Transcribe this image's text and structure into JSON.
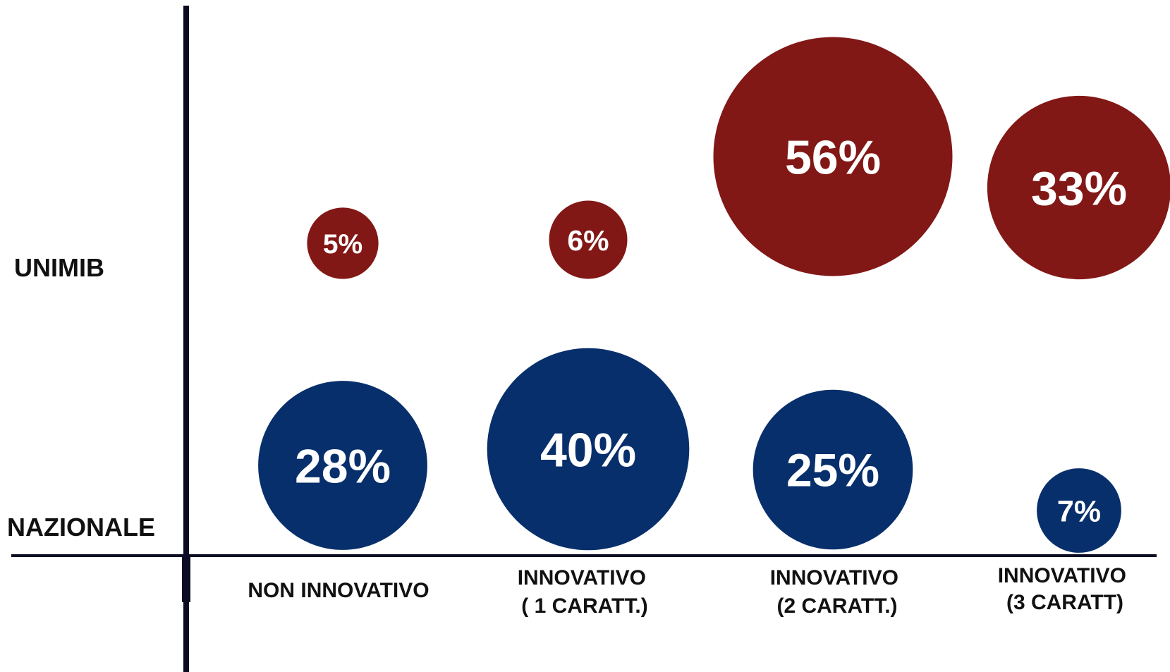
{
  "colors": {
    "unimib": "#821816",
    "nazionale": "#072f6b",
    "axis": "#0b0b24",
    "background": "#ffffff"
  },
  "chart_data": {
    "type": "bubble",
    "title": "",
    "categories": [
      [
        "NON INNOVATIVO"
      ],
      [
        "INNOVATIVO",
        "( 1 CARATT.)"
      ],
      [
        "INNOVATIVO",
        "(2 CARATT.)"
      ],
      [
        "INNOVATIVO",
        "(3 CARATT)"
      ]
    ],
    "rows": [
      "UNIMIB",
      "NAZIONALE"
    ],
    "series": [
      {
        "name": "UNIMIB",
        "values": [
          5,
          6,
          56,
          33
        ],
        "labels": [
          "5%",
          "6%",
          "56%",
          "33%"
        ]
      },
      {
        "name": "NAZIONALE",
        "values": [
          28,
          40,
          25,
          7
        ],
        "labels": [
          "28%",
          "40%",
          "25%",
          "7%"
        ]
      }
    ],
    "unit": "%",
    "legend": "none",
    "grid": false
  }
}
